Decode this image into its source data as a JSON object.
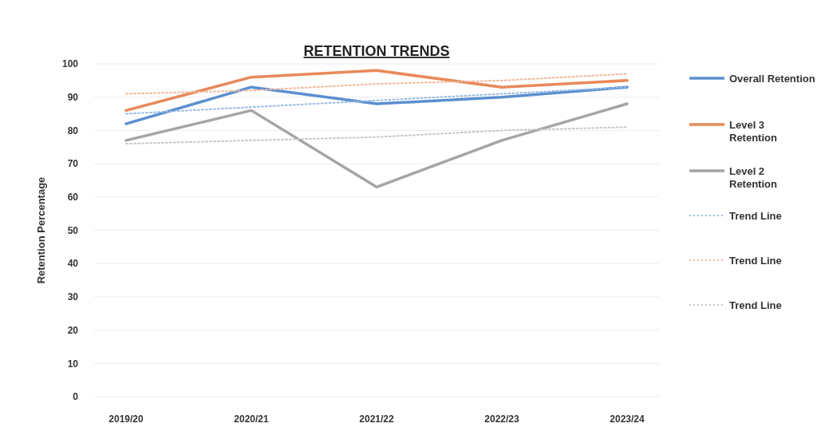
{
  "chart_data": {
    "type": "line",
    "title": "RETENTION TRENDS",
    "ylabel": "Retention Percentage",
    "categories": [
      "2019/20",
      "2020/21",
      "2021/22",
      "2022/23",
      "2023/24"
    ],
    "series": [
      {
        "name": "Overall Retention",
        "color": "#5b8fd0",
        "values": [
          82,
          93,
          88,
          90,
          93
        ]
      },
      {
        "name": "Level 3 Retention",
        "color": "#e8895a",
        "values": [
          86,
          96,
          98,
          93,
          95
        ]
      },
      {
        "name": "Level 2 Retention",
        "color": "#a5a5a5",
        "values": [
          77,
          86,
          63,
          77,
          88
        ]
      },
      {
        "name": "Trend Line",
        "color": "#9bbbe3",
        "values": [
          85,
          87,
          89,
          91,
          93
        ],
        "line_style": "dotted"
      },
      {
        "name": "Trend Line",
        "color": "#f0b8a0",
        "values": [
          91,
          92,
          94,
          95,
          97
        ],
        "line_style": "dotted"
      },
      {
        "name": "Trend Line",
        "color": "#c8c8c8",
        "values": [
          76,
          77,
          78,
          80,
          81
        ],
        "line_style": "dotted"
      }
    ],
    "ylim": [
      0,
      100
    ],
    "yticks": [
      0,
      10,
      20,
      30,
      40,
      50,
      60,
      70,
      80,
      90,
      100
    ],
    "grid": "y",
    "legend": "right",
    "line_style": "solid",
    "marker": "none"
  }
}
